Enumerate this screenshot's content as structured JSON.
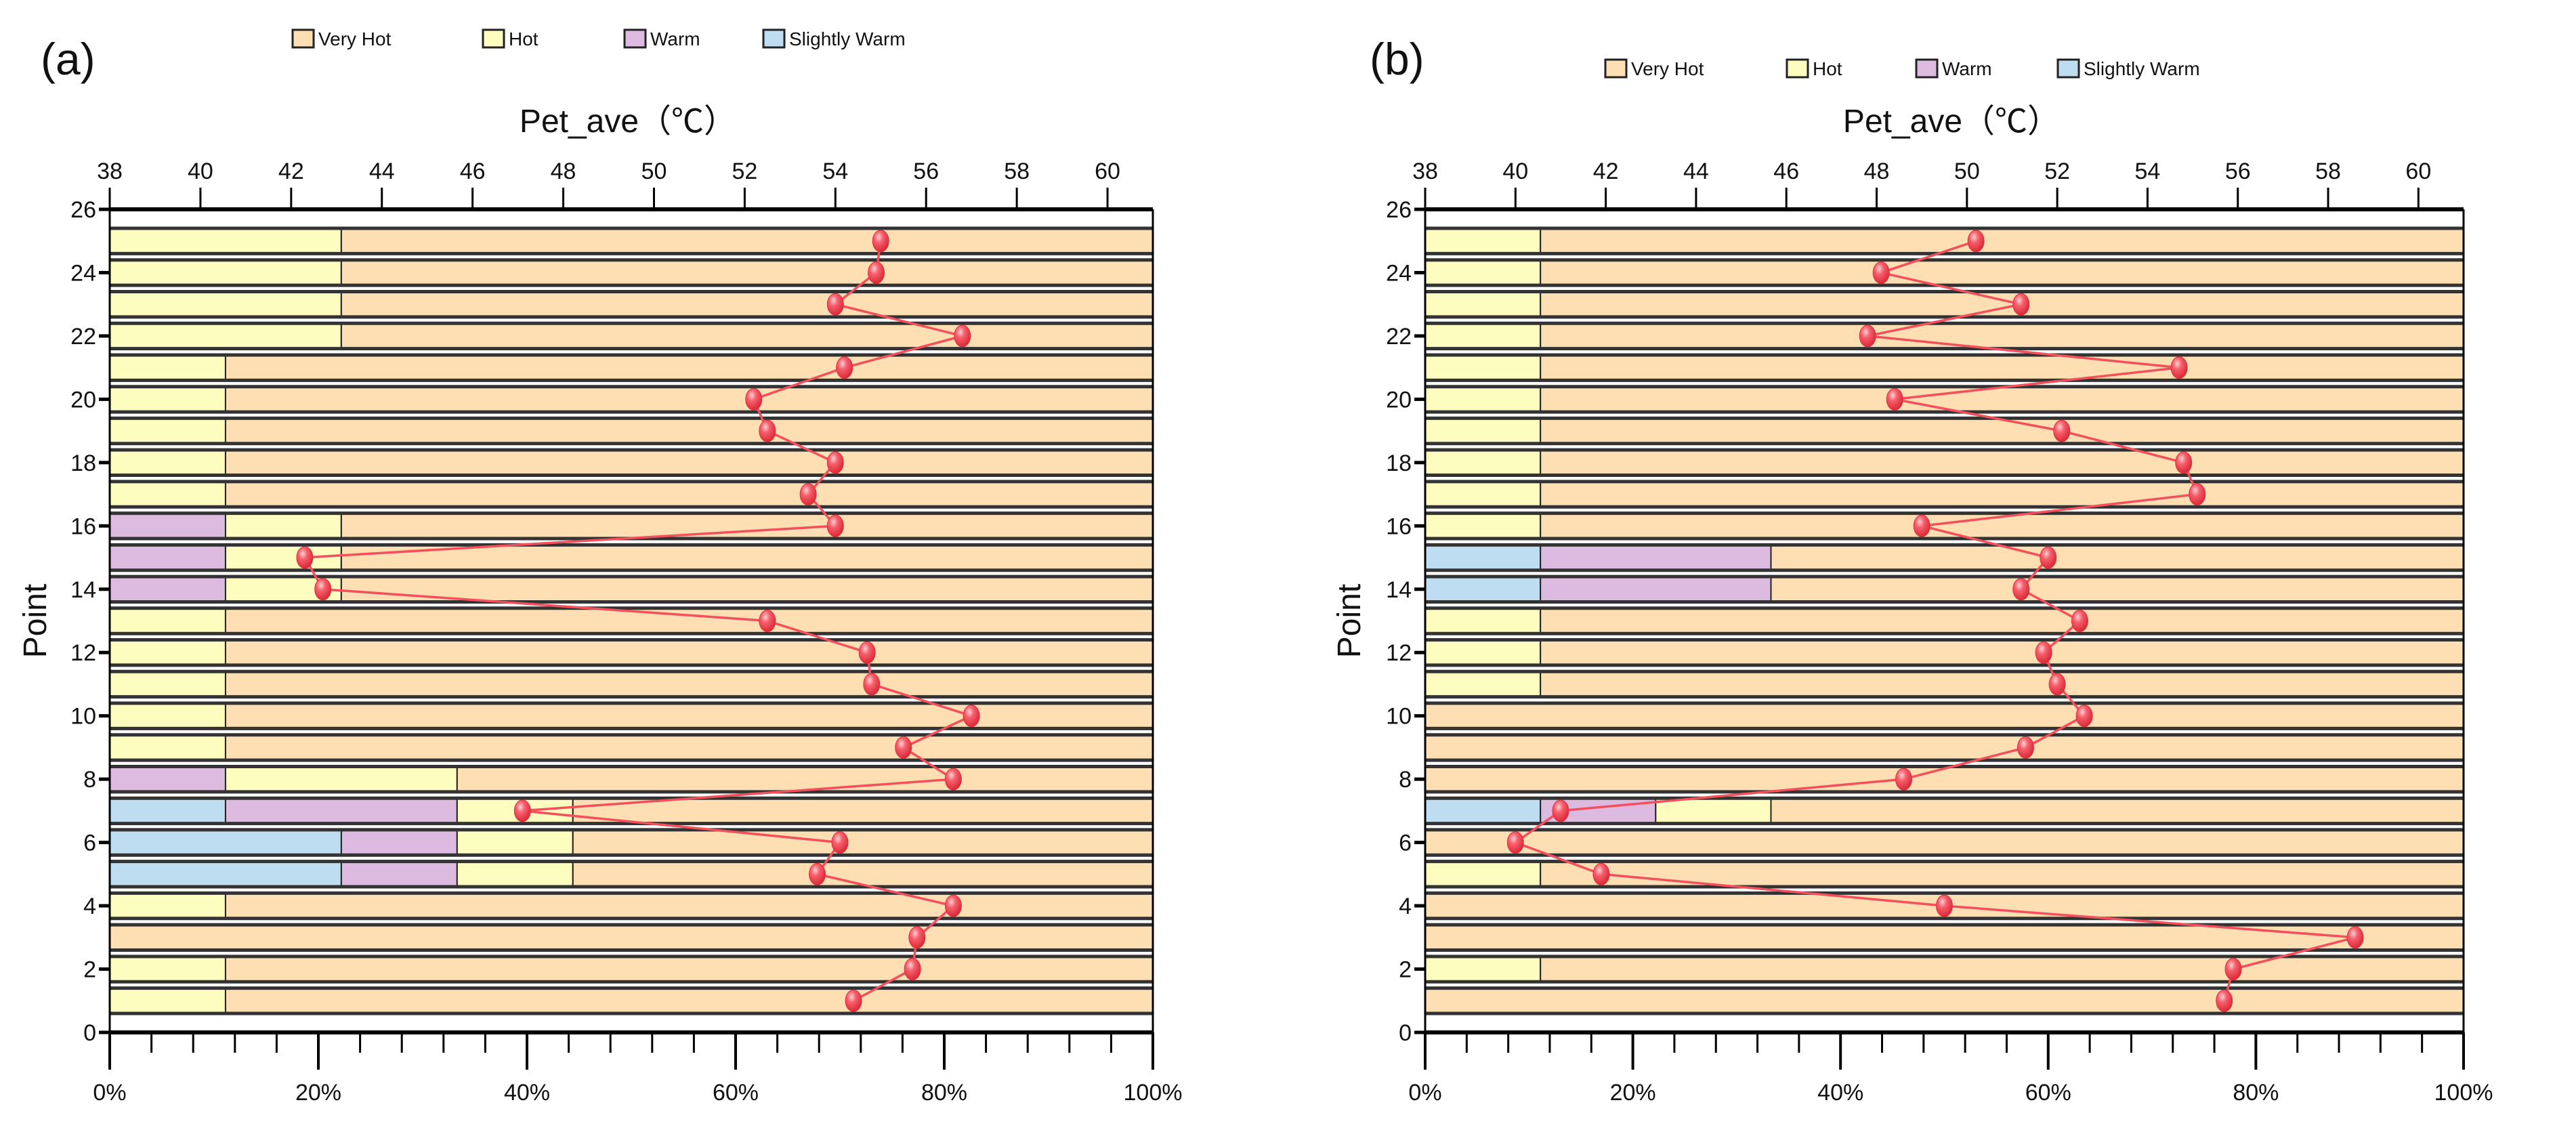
{
  "colors": {
    "Very Hot": "#FDDFB3",
    "Hot": "#FDFDC0",
    "Warm": "#DDBAE0",
    "Slightly Warm": "#BEDDF0",
    "line": "#F4505C",
    "marker": "#F03A4A"
  },
  "chart_data": [
    {
      "panel_label": "(a)",
      "type": "bar",
      "orientation": "horizontal-stacked-percent with overlaid line",
      "legend": [
        "Very Hot",
        "Hot",
        "Warm",
        "Slightly Warm"
      ],
      "legend_placement": "top",
      "top_axis_label": "Pet_ave（℃）",
      "top_axis_range": [
        38,
        61
      ],
      "top_axis_ticks": [
        38,
        40,
        42,
        44,
        46,
        48,
        50,
        52,
        54,
        56,
        58,
        60
      ],
      "bottom_axis_range": [
        0,
        100
      ],
      "bottom_axis_ticks": [
        "0%",
        "20%",
        "40%",
        "60%",
        "80%",
        "100%"
      ],
      "ylabel": "Point",
      "ylim": [
        0,
        26
      ],
      "y_ticks": [
        0,
        2,
        4,
        6,
        8,
        10,
        12,
        14,
        16,
        18,
        20,
        22,
        24,
        26
      ],
      "points": [
        1,
        2,
        3,
        4,
        5,
        6,
        7,
        8,
        9,
        10,
        11,
        12,
        13,
        14,
        15,
        16,
        17,
        18,
        19,
        20,
        21,
        22,
        23,
        24,
        25
      ],
      "series": [
        {
          "name": "Slightly Warm",
          "values": [
            0,
            0,
            0,
            0,
            22.2,
            22.2,
            11.1,
            0,
            0,
            0,
            0,
            0,
            0,
            0,
            0,
            0,
            0,
            0,
            0,
            0,
            0,
            0,
            0,
            0,
            0
          ]
        },
        {
          "name": "Warm",
          "values": [
            0,
            0,
            0,
            0,
            11.1,
            11.1,
            22.2,
            11.1,
            0,
            0,
            0,
            0,
            0,
            11.1,
            11.1,
            11.1,
            0,
            0,
            0,
            0,
            0,
            0,
            0,
            0,
            0
          ]
        },
        {
          "name": "Hot",
          "values": [
            11.1,
            11.1,
            0,
            11.1,
            11.1,
            11.1,
            11.1,
            22.2,
            11.1,
            11.1,
            11.1,
            11.1,
            11.1,
            11.1,
            11.1,
            11.1,
            11.1,
            11.1,
            11.1,
            11.1,
            11.1,
            22.2,
            22.2,
            22.2,
            22.2
          ]
        },
        {
          "name": "Very Hot",
          "values": [
            88.9,
            88.9,
            100,
            88.9,
            55.6,
            55.6,
            55.6,
            66.7,
            88.9,
            88.9,
            88.9,
            88.9,
            88.9,
            77.8,
            77.8,
            77.8,
            88.9,
            88.9,
            88.9,
            88.9,
            88.9,
            77.8,
            77.8,
            77.8,
            77.8
          ]
        }
      ],
      "line": {
        "name": "Pet_ave",
        "values": [
          54.4,
          55.7,
          55.8,
          56.6,
          53.6,
          54.1,
          47.1,
          56.6,
          55.5,
          57.0,
          54.8,
          54.7,
          52.5,
          42.7,
          42.3,
          54.0,
          53.4,
          54.0,
          52.5,
          52.2,
          54.2,
          56.8,
          54.0,
          54.9,
          55.0
        ]
      }
    },
    {
      "panel_label": "(b)",
      "type": "bar",
      "orientation": "horizontal-stacked-percent with overlaid line",
      "legend": [
        "Very Hot",
        "Hot",
        "Warm",
        "Slightly Warm"
      ],
      "legend_placement": "top",
      "top_axis_label": "Pet_ave（℃）",
      "top_axis_range": [
        38,
        61
      ],
      "top_axis_ticks": [
        38,
        40,
        42,
        44,
        46,
        48,
        50,
        52,
        54,
        56,
        58,
        60
      ],
      "bottom_axis_range": [
        0,
        100
      ],
      "bottom_axis_ticks": [
        "0%",
        "20%",
        "40%",
        "60%",
        "80%",
        "100%"
      ],
      "ylabel": "Point",
      "ylim": [
        0,
        26
      ],
      "y_ticks": [
        0,
        2,
        4,
        6,
        8,
        10,
        12,
        14,
        16,
        18,
        20,
        22,
        24,
        26
      ],
      "points": [
        1,
        2,
        3,
        4,
        5,
        6,
        7,
        8,
        9,
        10,
        11,
        12,
        13,
        14,
        15,
        16,
        17,
        18,
        19,
        20,
        21,
        22,
        23,
        24,
        25
      ],
      "series": [
        {
          "name": "Slightly Warm",
          "values": [
            0,
            0,
            0,
            0,
            0,
            0,
            11.1,
            0,
            0,
            0,
            0,
            0,
            0,
            11.1,
            11.1,
            0,
            0,
            0,
            0,
            0,
            0,
            0,
            0,
            0,
            0
          ]
        },
        {
          "name": "Warm",
          "values": [
            0,
            0,
            0,
            0,
            0,
            0,
            11.1,
            0,
            0,
            0,
            0,
            0,
            0,
            22.2,
            22.2,
            0,
            0,
            0,
            0,
            0,
            0,
            0,
            0,
            0,
            0
          ]
        },
        {
          "name": "Hot",
          "values": [
            0,
            11.1,
            0,
            0,
            11.1,
            0,
            11.1,
            0,
            0,
            0,
            11.1,
            11.1,
            11.1,
            0,
            0,
            11.1,
            11.1,
            11.1,
            11.1,
            11.1,
            11.1,
            11.1,
            11.1,
            11.1,
            11.1
          ]
        },
        {
          "name": "Very Hot",
          "values": [
            100,
            88.9,
            100,
            100,
            88.9,
            100,
            66.7,
            100,
            100,
            100,
            88.9,
            88.9,
            88.9,
            66.7,
            66.7,
            88.9,
            88.9,
            88.9,
            88.9,
            88.9,
            88.9,
            88.9,
            88.9,
            88.9,
            88.9
          ]
        }
      ],
      "line": {
        "name": "Pet_ave",
        "values": [
          55.7,
          55.9,
          58.6,
          49.5,
          41.9,
          40.0,
          41.0,
          48.6,
          51.3,
          52.6,
          52.0,
          51.7,
          52.5,
          51.2,
          51.8,
          49.0,
          55.1,
          54.8,
          52.1,
          48.4,
          54.7,
          47.8,
          51.2,
          48.1,
          50.2
        ]
      }
    }
  ]
}
